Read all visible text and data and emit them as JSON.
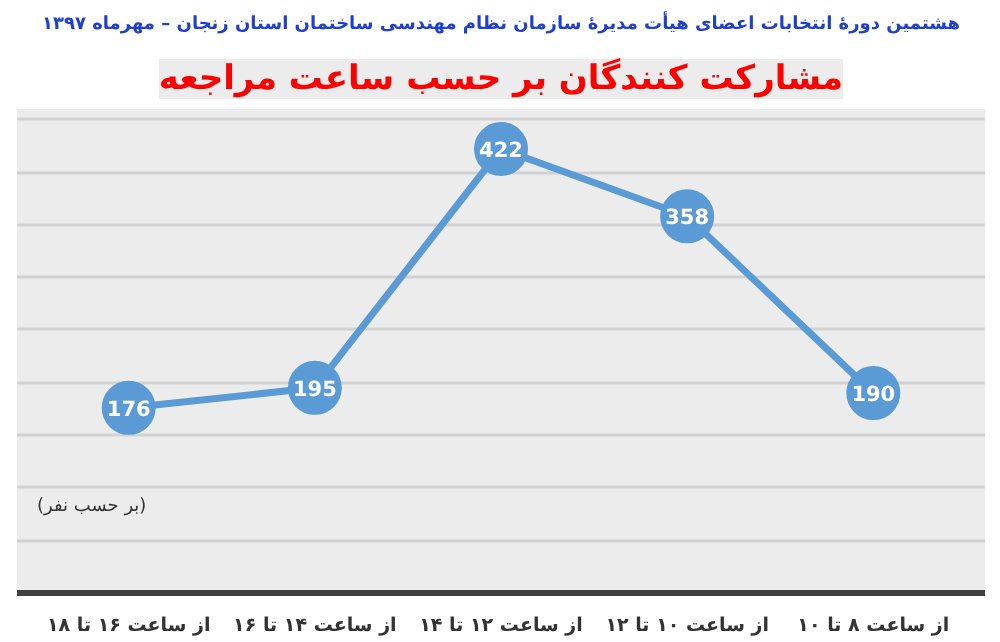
{
  "chart_data": {
    "type": "line",
    "title": "مشارکت کنندگان بر حسب ساعت مراجعه",
    "subtitle": "هشتمین دورهٔ انتخابات اعضای هیأت مدیرهٔ سازمان نظام مهندسی ساختمان استان زنجان – مهرماه ۱۳۹۷",
    "annotations": [
      "(بر حسب نفر)"
    ],
    "categories": [
      "از ساعت ۱۶ تا ۱۸",
      "از ساعت ۱۴ تا ۱۶",
      "از ساعت ۱۲ تا ۱۴",
      "از ساعت ۱۰ تا ۱۲",
      "از ساعت ۸ تا ۱۰"
    ],
    "series": [
      {
        "color": "#5b9bd5",
        "values": [
          176,
          195,
          422,
          358,
          190
        ]
      }
    ],
    "ylim": [
      0,
      460
    ],
    "yticks": [
      {
        "value": 0,
        "label": null
      },
      {
        "value": 50,
        "label": null
      },
      {
        "value": 100,
        "label": null
      },
      {
        "value": 150,
        "label": null
      },
      {
        "value": 200,
        "label": null
      },
      {
        "value": 250,
        "label": null
      },
      {
        "value": 300,
        "label": null
      },
      {
        "value": 350,
        "label": null
      },
      {
        "value": 400,
        "label": null
      },
      {
        "value": 450,
        "label": null
      }
    ],
    "grid": "y",
    "tick_labels": "x",
    "marker": "circle",
    "line_style": "solid",
    "data_labels": true
  }
}
